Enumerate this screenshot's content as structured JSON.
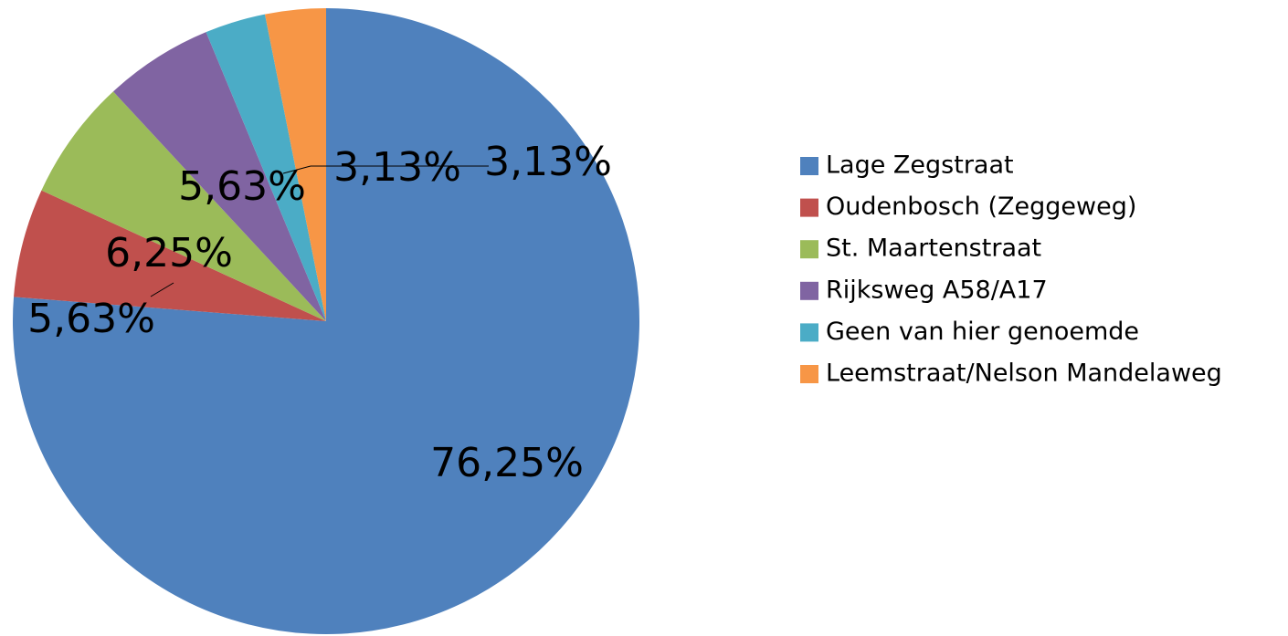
{
  "chart_data": {
    "type": "pie",
    "categories": [
      "Lage Zegstraat",
      "Oudenbosch (Zeggeweg)",
      "St. Maartenstraat",
      "Rijksweg A58/A17",
      "Geen van hier genoemde",
      "Leemstraat/Nelson Mandelaweg"
    ],
    "values": [
      76.25,
      5.63,
      6.25,
      5.63,
      3.13,
      3.13
    ],
    "value_labels": [
      "76,25%",
      "5,63%",
      "6,25%",
      "5,63%",
      "3,13%",
      "3,13%"
    ],
    "colors": [
      "#4f81bd",
      "#c0504d",
      "#9bbb59",
      "#8064a2",
      "#4bacc6",
      "#f79646"
    ],
    "legend": "right"
  }
}
